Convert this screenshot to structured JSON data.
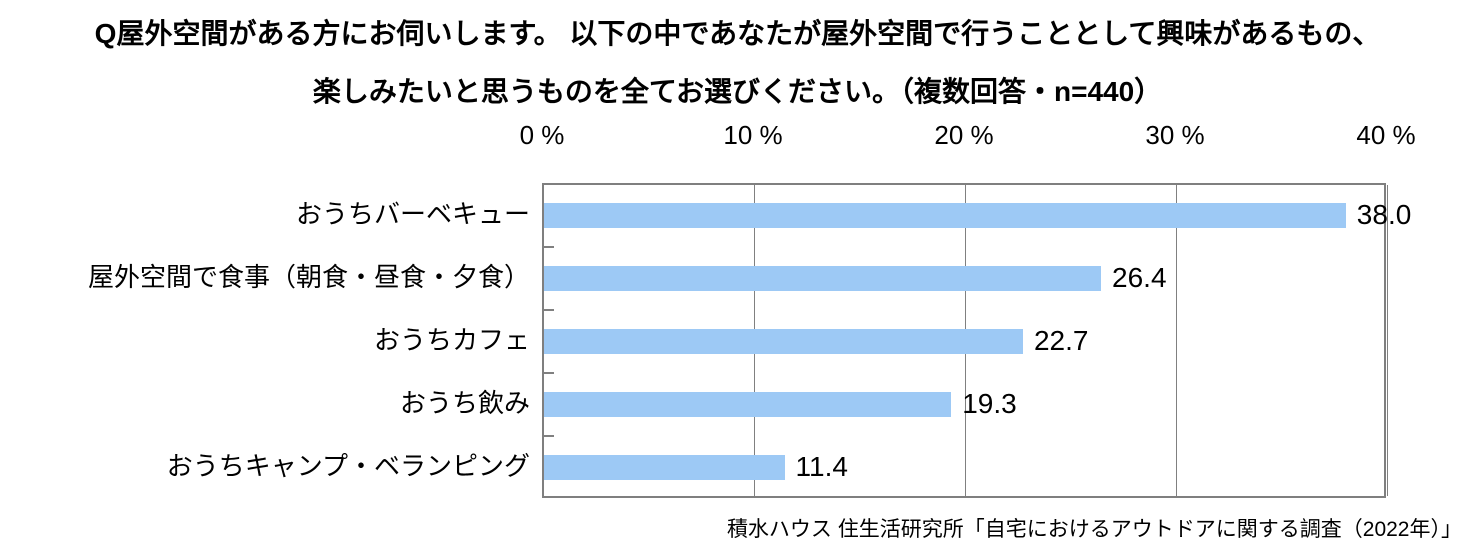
{
  "title": {
    "line1": "Q屋外空間がある方にお伺いします。 以下の中であなたが屋外空間で行うこととして興味があるもの、",
    "line2": "楽しみたいと思うものを全てお選びください。（複数回答・n=440）"
  },
  "source": "積水ハウス 住生活研究所「自宅におけるアウトドアに関する調査（2022年）」",
  "chart_data": {
    "type": "bar",
    "orientation": "horizontal",
    "title": "Q屋外空間がある方にお伺いします。 以下の中であなたが屋外空間で行うこととして興味があるもの、楽しみたいと思うものを全てお選びください。（複数回答・n=440）",
    "categories": [
      "おうちバーベキュー",
      "屋外空間で食事（朝食・昼食・夕食）",
      "おうちカフェ",
      "おうち飲み",
      "おうちキャンプ・ベランピング"
    ],
    "values": [
      38.0,
      26.4,
      22.7,
      19.3,
      11.4
    ],
    "value_labels": [
      "38.0",
      "26.4",
      "22.7",
      "19.3",
      "11.4"
    ],
    "x_axis": {
      "tick_values": [
        0,
        10,
        20,
        30,
        40
      ],
      "tick_labels": [
        "0 %",
        "10 %",
        "20 %",
        "30 %",
        "40 %"
      ],
      "min": 0,
      "max": 40,
      "position": "top"
    },
    "grid": true,
    "legend": false,
    "colors": {
      "bar_fill": "#9DC9F5",
      "plot_border": "#7F7F7F",
      "gridline": "#808080",
      "text": "#000000",
      "background": "#FFFFFF"
    }
  }
}
